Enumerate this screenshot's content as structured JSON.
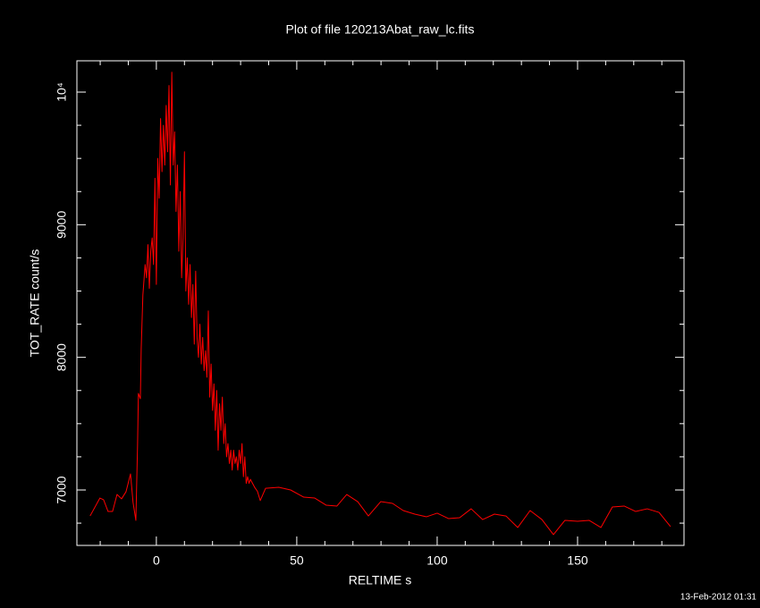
{
  "chart_data": {
    "type": "line",
    "title": "Plot of file 120213Abat_raw_lc.fits",
    "x_label": "RELTIME  s",
    "y_label": "TOT_RATE  count/s",
    "timestamp": "13-Feb-2012 01:31",
    "xlim": [
      -28.3,
      187.9
    ],
    "ylim": [
      6582,
      10236
    ],
    "xticks": [
      0,
      50,
      100,
      150
    ],
    "yticks": [
      7000,
      8000,
      9000,
      {
        "value": 10000,
        "label": "10⁴"
      }
    ],
    "xminorticks": [
      -20,
      -10,
      10,
      20,
      30,
      40,
      60,
      70,
      80,
      90,
      110,
      120,
      130,
      140,
      160,
      170,
      180
    ],
    "yminorticks": [
      6750,
      7250,
      7500,
      7750,
      8250,
      8500,
      8750,
      9250,
      9500,
      9750
    ],
    "frame_color": "#ffffff",
    "series": [
      {
        "name": "TOT_RATE",
        "color": "#ff0000",
        "x": [
          -23.6,
          -20.1,
          -18.8,
          -17.2,
          -15.6,
          -14.0,
          -12.4,
          -10.8,
          -9.2,
          -8.3,
          -7.3,
          -6.7,
          -6.4,
          -5.7,
          -5.4,
          -4.8,
          -4.0,
          -3.5,
          -3.0,
          -2.5,
          -2.0,
          -1.5,
          -1.0,
          -0.5,
          0.0,
          0.5,
          1.0,
          1.5,
          2.0,
          2.5,
          3.0,
          3.5,
          4.0,
          4.5,
          5.0,
          5.5,
          6.0,
          6.5,
          7.0,
          7.5,
          8.0,
          8.5,
          9.0,
          9.5,
          10.0,
          10.5,
          11.0,
          11.5,
          12.0,
          12.5,
          13.0,
          13.5,
          14.0,
          14.5,
          15.0,
          15.5,
          16.0,
          16.5,
          17.0,
          17.5,
          18.0,
          18.5,
          19.0,
          19.5,
          20.0,
          20.5,
          21.0,
          21.5,
          22.0,
          22.5,
          23.0,
          23.5,
          24.0,
          24.5,
          25.0,
          25.5,
          26.0,
          26.5,
          27.0,
          27.5,
          28.0,
          28.5,
          29.0,
          29.5,
          30.0,
          30.5,
          31.0,
          31.5,
          32.0,
          32.5,
          33.0,
          33.5,
          34.0,
          35.0,
          36.0,
          37.0,
          38.9,
          43.6,
          47.8,
          52.5,
          56.4,
          60.5,
          64.3,
          67.8,
          71.7,
          75.5,
          79.9,
          84.1,
          87.9,
          92.0,
          96.2,
          100.0,
          104.1,
          108.0,
          112.1,
          116.2,
          120.4,
          124.5,
          128.7,
          133.1,
          137.3,
          141.4,
          145.5,
          150.0,
          154.1,
          158.3,
          162.4,
          166.6,
          170.7,
          174.8,
          179.0,
          183.1
        ],
        "values": [
          6804,
          6939,
          6926,
          6838,
          6838,
          6966,
          6933,
          6987,
          7121,
          6906,
          6771,
          7337,
          7728,
          7688,
          8065,
          8470,
          8700,
          8600,
          8850,
          8520,
          8800,
          8900,
          8700,
          9350,
          8550,
          9500,
          9200,
          9800,
          9400,
          9750,
          9450,
          9900,
          9550,
          10050,
          9300,
          10150,
          9450,
          9700,
          9100,
          9450,
          8800,
          9250,
          8600,
          8900,
          9550,
          8500,
          8750,
          8400,
          8700,
          8300,
          8550,
          8100,
          8650,
          8150,
          8000,
          8250,
          7950,
          8150,
          7900,
          8050,
          7850,
          8350,
          7700,
          7950,
          7600,
          7800,
          7450,
          7750,
          7300,
          7650,
          7450,
          7700,
          7350,
          7500,
          7250,
          7350,
          7200,
          7300,
          7150,
          7300,
          7200,
          7250,
          7150,
          7300,
          7200,
          7350,
          7100,
          7250,
          7050,
          7100,
          7050,
          7080,
          7060,
          7020,
          6990,
          6920,
          7013,
          7020,
          7000,
          6946,
          6939,
          6885,
          6879,
          6966,
          6912,
          6804,
          6912,
          6899,
          6845,
          6818,
          6798,
          6825,
          6784,
          6791,
          6858,
          6777,
          6818,
          6804,
          6717,
          6845,
          6777,
          6663,
          6771,
          6764,
          6771,
          6717,
          6872,
          6879,
          6838,
          6858,
          6831,
          6724
        ]
      }
    ]
  }
}
